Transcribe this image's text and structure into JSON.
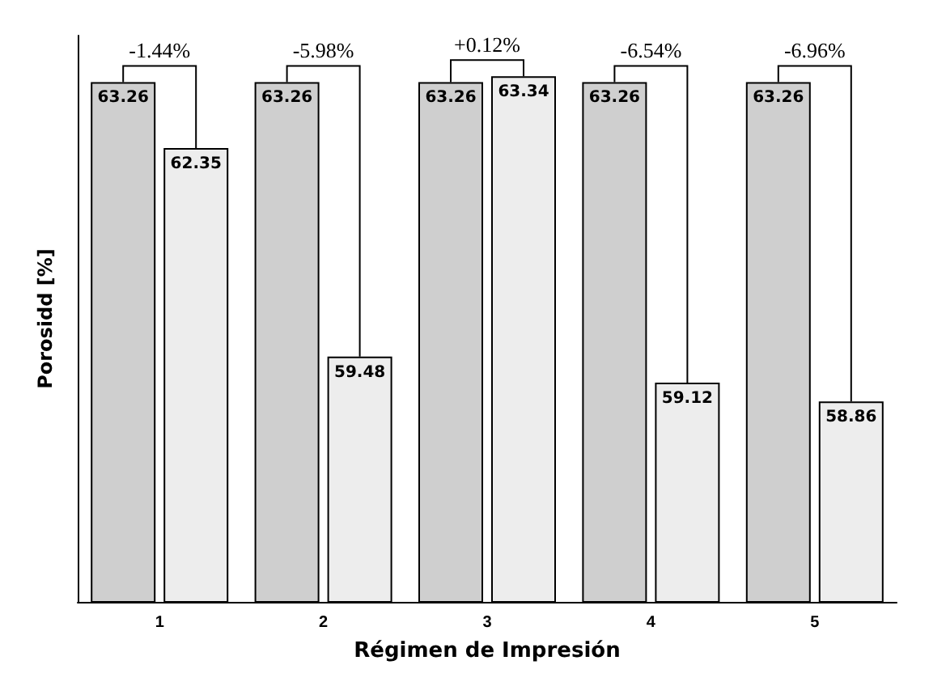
{
  "chart_data": {
    "type": "bar",
    "xlabel": "Régimen de Impresión",
    "ylabel": "Porosidd [%]",
    "categories": [
      "1",
      "2",
      "3",
      "4",
      "5"
    ],
    "series": [
      {
        "color": "#cfcfcf",
        "values": [
          63.26,
          63.26,
          63.26,
          63.26,
          63.26
        ]
      },
      {
        "color": "#ededed",
        "values": [
          62.35,
          59.48,
          63.34,
          59.12,
          58.86
        ]
      }
    ],
    "ylim": [
      56.1,
      63.9
    ],
    "tick_labels": "x",
    "data_labels": true,
    "annotations": [
      {
        "text": "-1.44%",
        "x": "1",
        "y": 63.26
      },
      {
        "text": "-5.98%",
        "x": "2",
        "y": 63.26
      },
      {
        "text": "+0.12%",
        "x": "3",
        "y": 63.34
      },
      {
        "text": "-6.54%",
        "x": "4",
        "y": 63.26
      },
      {
        "text": "-6.96%",
        "x": "5",
        "y": 63.26
      }
    ]
  }
}
